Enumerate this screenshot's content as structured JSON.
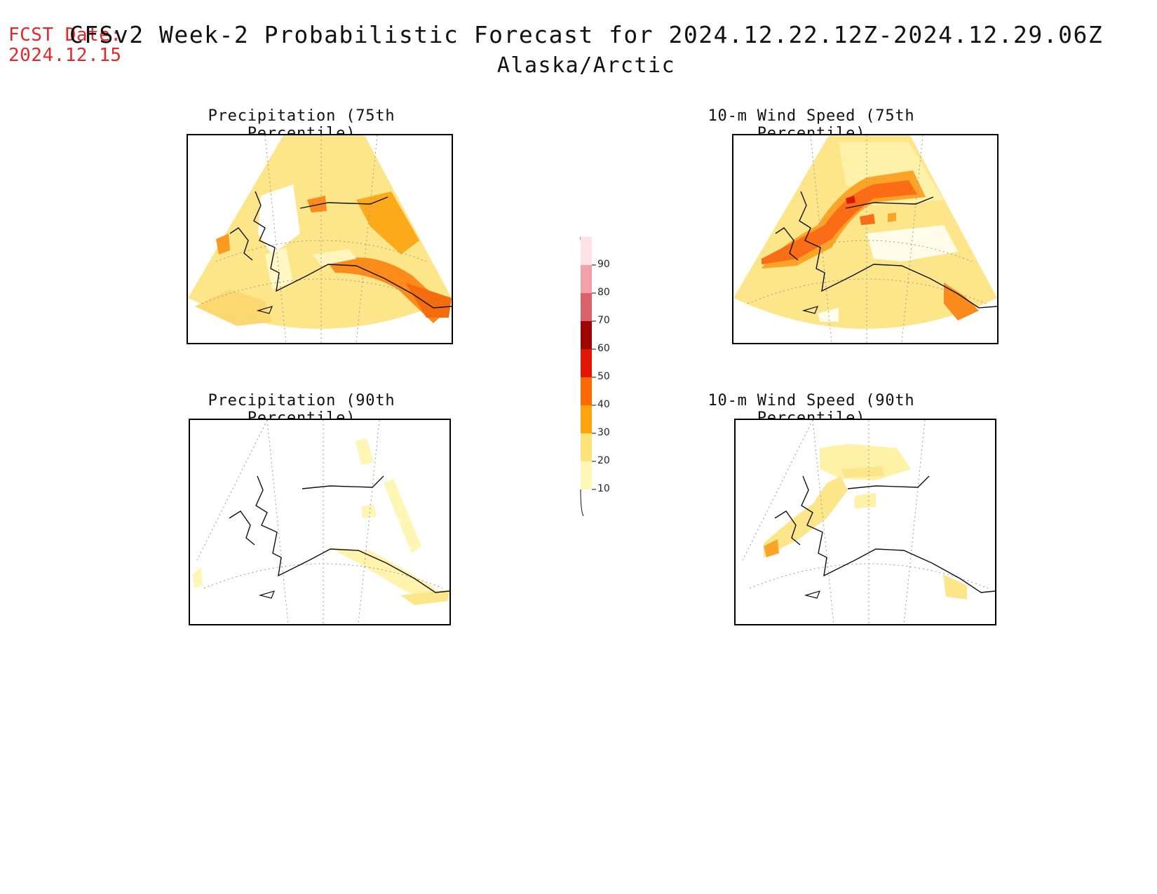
{
  "header": {
    "fcst_line1": "FCST Date:",
    "fcst_line2": "2024.12.15",
    "title": "CFSv2 Week-2 Probabilistic Forecast for 2024.12.22.12Z-2024.12.29.06Z",
    "subtitle": "Alaska/Arctic"
  },
  "panels": [
    {
      "title": "Precipitation (75th Percentile)"
    },
    {
      "title": "10-m Wind Speed (75th Percentile)"
    },
    {
      "title": "Precipitation (90th Percentile)"
    },
    {
      "title": "10-m Wind Speed (90th Percentile)"
    }
  ],
  "colorbar": {
    "levels": [
      "10",
      "20",
      "30",
      "40",
      "50",
      "60",
      "70",
      "80",
      "90"
    ],
    "colors": [
      "#fff7b8",
      "#fde37c",
      "#fca40f",
      "#fb6a07",
      "#e01607",
      "#9e0505",
      "#d9636b",
      "#f0a2a8",
      "#fde3e6"
    ]
  }
}
